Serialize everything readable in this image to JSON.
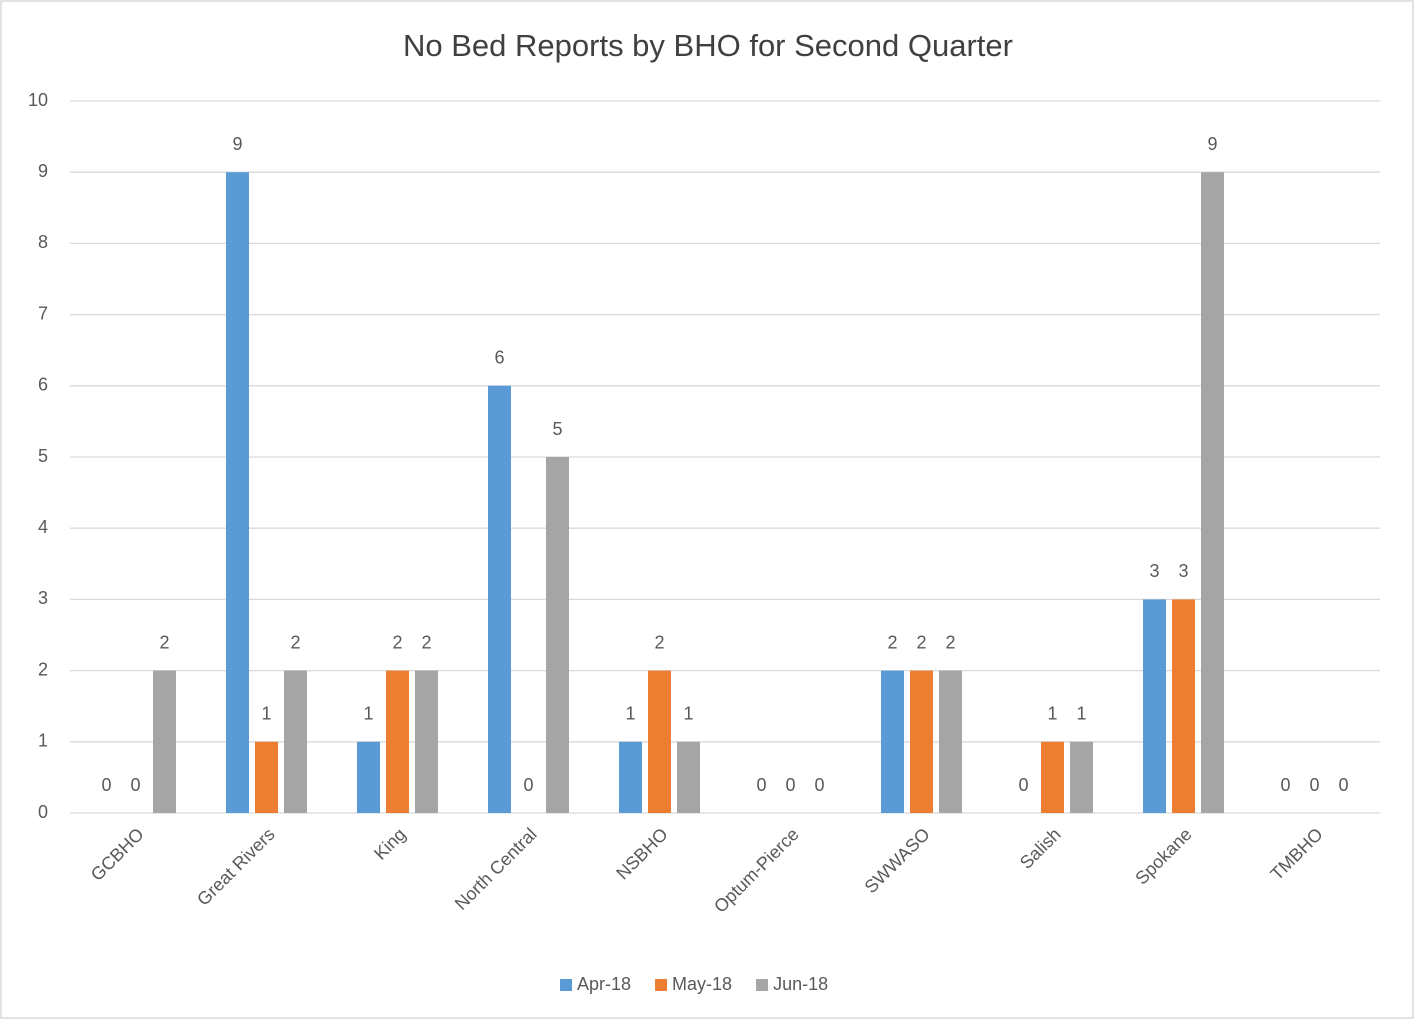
{
  "chart_data": {
    "type": "bar",
    "title": "No Bed Reports by BHO for Second Quarter",
    "categories": [
      "GCBHO",
      "Great Rivers",
      "King",
      "North Central",
      "NSBHO",
      "Optum-Pierce",
      "SWWASO",
      "Salish",
      "Spokane",
      "TMBHO"
    ],
    "series": [
      {
        "name": "Apr-18",
        "color": "#5b9bd5",
        "values": [
          0,
          9,
          1,
          6,
          1,
          0,
          2,
          0,
          3,
          0
        ]
      },
      {
        "name": "May-18",
        "color": "#ed7d31",
        "values": [
          0,
          1,
          2,
          0,
          2,
          0,
          2,
          1,
          3,
          0
        ]
      },
      {
        "name": "Jun-18",
        "color": "#a5a5a5",
        "values": [
          2,
          2,
          2,
          5,
          1,
          0,
          2,
          1,
          9,
          0
        ]
      }
    ],
    "ylim": [
      0,
      10
    ],
    "yticks": [
      0,
      1,
      2,
      3,
      4,
      5,
      6,
      7,
      8,
      9,
      10
    ],
    "grid": true,
    "legend": "bottom"
  }
}
